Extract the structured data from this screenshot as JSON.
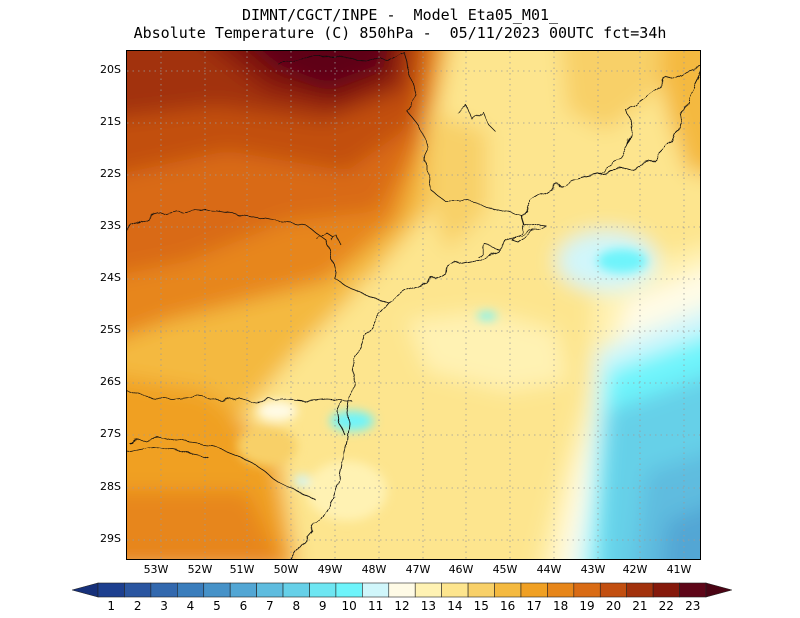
{
  "header": {
    "line1": "DIMNT/CGCT/INPE -  Model Eta05_M01_",
    "line2": "Absolute Temperature (C) 850hPa -  05/11/2023 00UTC fct=34h"
  },
  "map": {
    "lat_labels": [
      "20S",
      "21S",
      "22S",
      "23S",
      "24S",
      "25S",
      "26S",
      "27S",
      "28S",
      "29S"
    ],
    "lon_labels": [
      "53W",
      "52W",
      "51W",
      "50W",
      "49W",
      "48W",
      "47W",
      "46W",
      "45W",
      "44W",
      "43W",
      "42W",
      "41W"
    ],
    "lat_range": [
      -29.5,
      -19.7
    ],
    "lon_range": [
      -53.95,
      -40.9
    ],
    "grid": true
  },
  "colorbar": {
    "labels": [
      "1",
      "2",
      "3",
      "4",
      "5",
      "6",
      "7",
      "8",
      "9",
      "10",
      "11",
      "12",
      "13",
      "14",
      "15",
      "16",
      "17",
      "18",
      "19",
      "20",
      "21",
      "22",
      "23"
    ],
    "colors": [
      "#1c3f8f",
      "#2a55a0",
      "#3268ae",
      "#3a7dbc",
      "#4692c8",
      "#52a6d4",
      "#5ebcdf",
      "#66d0e8",
      "#6ee6f2",
      "#6ef4fb",
      "#d0f6fb",
      "#fffbe6",
      "#fff2b3",
      "#fde58e",
      "#f8d068",
      "#f4b93f",
      "#f0a023",
      "#e7861a",
      "#d96b14",
      "#c24f10",
      "#a2320c",
      "#85190b",
      "#5e0618"
    ],
    "under_color": "#16307a",
    "over_color": "#4a0414"
  }
}
